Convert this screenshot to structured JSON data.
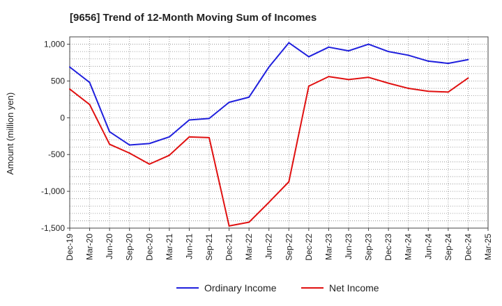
{
  "chart_data": {
    "type": "line",
    "title": "[9656]  Trend of 12-Month Moving Sum of Incomes",
    "xlabel": "",
    "ylabel": "Amount (million yen)",
    "ylim": [
      -1500,
      1100
    ],
    "yticks": [
      1000,
      500,
      0,
      -500,
      -1000,
      -1500
    ],
    "ytick_labels": [
      "1,000",
      "500",
      "0",
      "-500",
      "-1,000",
      "-1,500"
    ],
    "categories": [
      "Dec-19",
      "Mar-20",
      "Jun-20",
      "Sep-20",
      "Dec-20",
      "Mar-21",
      "Jun-21",
      "Sep-21",
      "Dec-21",
      "Mar-22",
      "Jun-22",
      "Sep-22",
      "Dec-22",
      "Mar-23",
      "Jun-23",
      "Sep-23",
      "Dec-23",
      "Mar-24",
      "Jun-24",
      "Sep-24",
      "Dec-24",
      "Mar-25"
    ],
    "grid": true,
    "legend_position": "bottom",
    "series": [
      {
        "name": "Ordinary Income",
        "color": "#1f1fdd",
        "values": [
          690,
          480,
          -190,
          -370,
          -350,
          -260,
          -30,
          -10,
          210,
          280,
          690,
          1020,
          830,
          960,
          910,
          1000,
          900,
          850,
          770,
          740,
          790,
          null
        ]
      },
      {
        "name": "Net Income",
        "color": "#e01010",
        "values": [
          390,
          180,
          -360,
          -480,
          -630,
          -510,
          -260,
          -270,
          -1470,
          -1420,
          -1150,
          -870,
          430,
          560,
          520,
          550,
          470,
          400,
          360,
          350,
          540,
          null
        ]
      }
    ]
  }
}
